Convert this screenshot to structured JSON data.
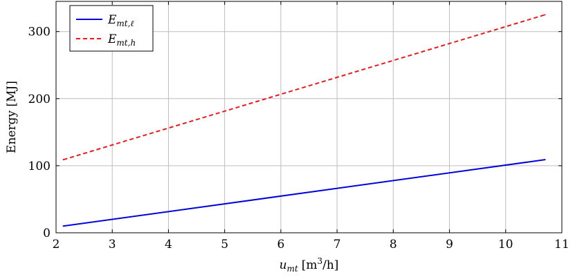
{
  "chart_data": {
    "type": "line",
    "xlabel": {
      "main": "u",
      "sub": "mt",
      "unit_open": "[m",
      "unit_sup": "3",
      "unit_close": "/h]"
    },
    "ylabel": "Energy [MJ]",
    "xlim": [
      2,
      11
    ],
    "ylim": [
      0,
      345
    ],
    "xticks": [
      2,
      3,
      4,
      5,
      6,
      7,
      8,
      9,
      10,
      11
    ],
    "yticks": [
      0,
      100,
      200,
      300
    ],
    "grid": true,
    "legend_position": "top-left",
    "series": [
      {
        "name_main": "E",
        "name_sub": "mt,ℓ",
        "color": "#0000dd",
        "style": "solid",
        "x": [
          2.13,
          10.7
        ],
        "y": [
          10,
          109
        ]
      },
      {
        "name_main": "E",
        "name_sub": "mt,h",
        "color": "#e8191e",
        "style": "dashed",
        "x": [
          2.13,
          10.7
        ],
        "y": [
          109,
          325
        ]
      }
    ]
  }
}
